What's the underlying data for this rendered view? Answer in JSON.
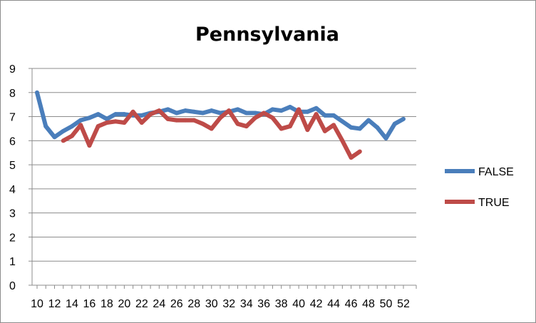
{
  "chart_data": {
    "type": "line",
    "title": "Pennsylvania",
    "xlabel": "",
    "ylabel": "",
    "ylim": [
      0,
      9
    ],
    "y_ticks": [
      0,
      1,
      2,
      3,
      4,
      5,
      6,
      7,
      8,
      9
    ],
    "x_ticks": [
      10,
      12,
      14,
      16,
      18,
      20,
      22,
      24,
      26,
      28,
      30,
      32,
      34,
      36,
      38,
      40,
      42,
      44,
      46,
      48,
      50,
      52
    ],
    "x_range": [
      10,
      52
    ],
    "grid": "horizontal",
    "legend_position": "right",
    "series": [
      {
        "name": "FALSE",
        "color": "#4a7ebb",
        "points": [
          [
            10,
            8.0
          ],
          [
            11,
            6.6
          ],
          [
            12,
            6.15
          ],
          [
            13,
            6.4
          ],
          [
            14,
            6.6
          ],
          [
            15,
            6.85
          ],
          [
            16,
            6.95
          ],
          [
            17,
            7.1
          ],
          [
            18,
            6.9
          ],
          [
            19,
            7.1
          ],
          [
            20,
            7.1
          ],
          [
            21,
            7.05
          ],
          [
            22,
            7.05
          ],
          [
            23,
            7.15
          ],
          [
            24,
            7.2
          ],
          [
            25,
            7.3
          ],
          [
            26,
            7.15
          ],
          [
            27,
            7.25
          ],
          [
            28,
            7.2
          ],
          [
            29,
            7.15
          ],
          [
            30,
            7.25
          ],
          [
            31,
            7.15
          ],
          [
            32,
            7.2
          ],
          [
            33,
            7.3
          ],
          [
            34,
            7.15
          ],
          [
            35,
            7.15
          ],
          [
            36,
            7.1
          ],
          [
            37,
            7.3
          ],
          [
            38,
            7.25
          ],
          [
            39,
            7.4
          ],
          [
            40,
            7.2
          ],
          [
            41,
            7.2
          ],
          [
            42,
            7.35
          ],
          [
            43,
            7.05
          ],
          [
            44,
            7.05
          ],
          [
            45,
            6.8
          ],
          [
            46,
            6.55
          ],
          [
            47,
            6.5
          ],
          [
            48,
            6.85
          ],
          [
            49,
            6.55
          ],
          [
            50,
            6.1
          ],
          [
            51,
            6.7
          ],
          [
            52,
            6.9
          ]
        ]
      },
      {
        "name": "TRUE",
        "color": "#be4b48",
        "points": [
          [
            13,
            6.0
          ],
          [
            14,
            6.2
          ],
          [
            15,
            6.65
          ],
          [
            16,
            5.8
          ],
          [
            17,
            6.6
          ],
          [
            18,
            6.75
          ],
          [
            19,
            6.8
          ],
          [
            20,
            6.75
          ],
          [
            21,
            7.2
          ],
          [
            22,
            6.75
          ],
          [
            23,
            7.1
          ],
          [
            24,
            7.25
          ],
          [
            25,
            6.9
          ],
          [
            26,
            6.85
          ],
          [
            27,
            6.85
          ],
          [
            28,
            6.85
          ],
          [
            29,
            6.7
          ],
          [
            30,
            6.5
          ],
          [
            31,
            6.95
          ],
          [
            32,
            7.25
          ],
          [
            33,
            6.7
          ],
          [
            34,
            6.6
          ],
          [
            35,
            6.95
          ],
          [
            36,
            7.15
          ],
          [
            37,
            6.95
          ],
          [
            38,
            6.5
          ],
          [
            39,
            6.6
          ],
          [
            40,
            7.3
          ],
          [
            41,
            6.45
          ],
          [
            42,
            7.1
          ],
          [
            43,
            6.4
          ],
          [
            44,
            6.65
          ],
          [
            45,
            6.0
          ],
          [
            46,
            5.3
          ],
          [
            47,
            5.55
          ]
        ]
      }
    ]
  }
}
